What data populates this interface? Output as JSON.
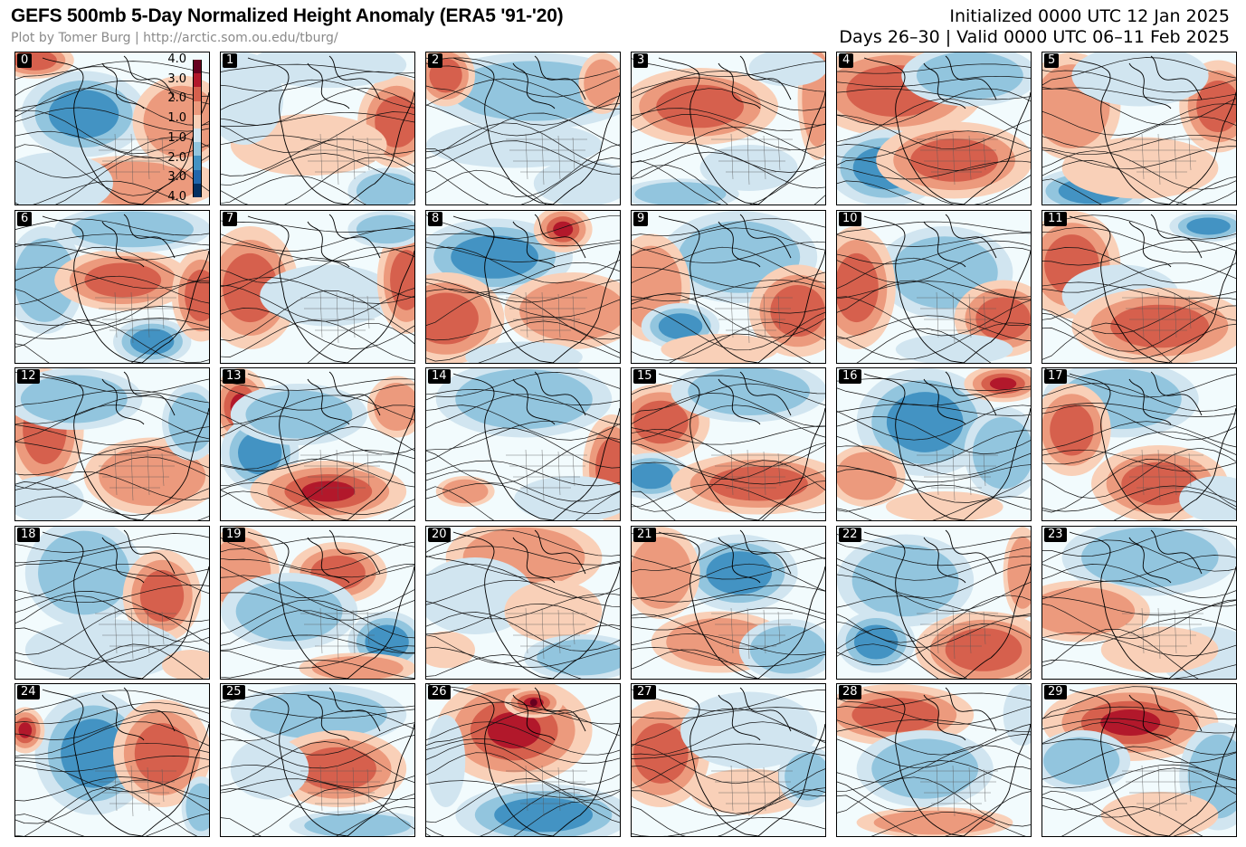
{
  "header": {
    "title": "GEFS 500mb 5-Day Normalized Height Anomaly (ERA5 '91-'20)",
    "credit": "Plot by Tomer Burg | http://arctic.som.ou.edu/tburg/",
    "initialized": "Initialized 0000 UTC 12 Jan 2025",
    "valid": "Days 26–30 | Valid 0000 UTC 06–11 Feb 2025"
  },
  "colors": {
    "pos": [
      "#f9d0b8",
      "#ec9a7d",
      "#d6604d",
      "#b2182b",
      "#67001f"
    ],
    "neg": [
      "#d1e5f0",
      "#92c5de",
      "#4393c3",
      "#2166ac",
      "#053061"
    ],
    "background": "#f2fbfd",
    "coast": "#000000"
  },
  "colorbar": {
    "ticks": [
      "4.0",
      "3.0",
      "2.0",
      "1.0",
      "1.0",
      "2.0",
      "3.0",
      "4.0"
    ]
  },
  "members": [
    {
      "label": "0",
      "blobs": [
        [
          "n",
          0.35,
          0.4,
          0.32,
          0.28,
          2
        ],
        [
          "p",
          0.1,
          0.05,
          0.2,
          0.12,
          2
        ],
        [
          "p",
          0.6,
          0.85,
          0.45,
          0.18,
          1
        ],
        [
          "p",
          0.85,
          0.45,
          0.25,
          0.3,
          1
        ],
        [
          "n",
          0.2,
          0.85,
          0.3,
          0.2,
          0
        ]
      ]
    },
    {
      "label": "1",
      "blobs": [
        [
          "p",
          0.9,
          0.45,
          0.2,
          0.3,
          2
        ],
        [
          "n",
          0.55,
          0.08,
          0.4,
          0.15,
          0
        ],
        [
          "p",
          0.45,
          0.6,
          0.4,
          0.2,
          0
        ],
        [
          "n",
          0.12,
          0.3,
          0.2,
          0.3,
          0
        ],
        [
          "n",
          0.85,
          0.9,
          0.2,
          0.15,
          1
        ]
      ]
    },
    {
      "label": "2",
      "blobs": [
        [
          "n",
          0.55,
          0.25,
          0.55,
          0.25,
          1
        ],
        [
          "p",
          0.1,
          0.15,
          0.15,
          0.2,
          2
        ],
        [
          "n",
          0.45,
          0.6,
          0.45,
          0.15,
          0
        ],
        [
          "p",
          0.9,
          0.2,
          0.12,
          0.2,
          1
        ],
        [
          "n",
          0.8,
          0.85,
          0.25,
          0.15,
          0
        ]
      ]
    },
    {
      "label": "3",
      "blobs": [
        [
          "p",
          0.35,
          0.35,
          0.4,
          0.25,
          2
        ],
        [
          "n",
          0.6,
          0.75,
          0.25,
          0.15,
          0
        ],
        [
          "n",
          0.25,
          0.92,
          0.3,
          0.1,
          1
        ],
        [
          "p",
          0.95,
          0.3,
          0.1,
          0.4,
          1
        ],
        [
          "n",
          0.8,
          0.1,
          0.2,
          0.12,
          0
        ]
      ]
    },
    {
      "label": "4",
      "blobs": [
        [
          "p",
          0.3,
          0.25,
          0.45,
          0.3,
          2
        ],
        [
          "n",
          0.25,
          0.75,
          0.3,
          0.25,
          2
        ],
        [
          "p",
          0.6,
          0.7,
          0.4,
          0.25,
          2
        ],
        [
          "n",
          0.68,
          0.15,
          0.35,
          0.2,
          1
        ]
      ]
    },
    {
      "label": "5",
      "blobs": [
        [
          "p",
          0.15,
          0.35,
          0.25,
          0.35,
          1
        ],
        [
          "n",
          0.25,
          0.9,
          0.3,
          0.15,
          2
        ],
        [
          "p",
          0.9,
          0.35,
          0.2,
          0.3,
          2
        ],
        [
          "n",
          0.5,
          0.15,
          0.35,
          0.2,
          0
        ],
        [
          "p",
          0.5,
          0.75,
          0.4,
          0.2,
          0
        ]
      ]
    },
    {
      "label": "6",
      "blobs": [
        [
          "n",
          0.15,
          0.45,
          0.2,
          0.35,
          1
        ],
        [
          "p",
          0.55,
          0.45,
          0.35,
          0.2,
          2
        ],
        [
          "n",
          0.7,
          0.85,
          0.2,
          0.15,
          2
        ],
        [
          "p",
          0.95,
          0.55,
          0.15,
          0.3,
          2
        ],
        [
          "n",
          0.6,
          0.12,
          0.4,
          0.15,
          1
        ]
      ]
    },
    {
      "label": "7",
      "blobs": [
        [
          "p",
          0.15,
          0.5,
          0.25,
          0.4,
          2
        ],
        [
          "n",
          0.55,
          0.55,
          0.35,
          0.2,
          0
        ],
        [
          "p",
          0.95,
          0.45,
          0.15,
          0.35,
          2
        ],
        [
          "n",
          0.85,
          0.12,
          0.2,
          0.12,
          1
        ]
      ]
    },
    {
      "label": "8",
      "blobs": [
        [
          "n",
          0.35,
          0.3,
          0.4,
          0.25,
          2
        ],
        [
          "p",
          0.1,
          0.7,
          0.3,
          0.3,
          2
        ],
        [
          "p",
          0.75,
          0.65,
          0.35,
          0.25,
          1
        ],
        [
          "p",
          0.7,
          0.12,
          0.15,
          0.15,
          3
        ],
        [
          "n",
          0.5,
          0.95,
          0.3,
          0.1,
          0
        ]
      ]
    },
    {
      "label": "9",
      "blobs": [
        [
          "n",
          0.55,
          0.3,
          0.4,
          0.3,
          1
        ],
        [
          "p",
          0.1,
          0.5,
          0.2,
          0.35,
          1
        ],
        [
          "n",
          0.25,
          0.75,
          0.2,
          0.15,
          2
        ],
        [
          "p",
          0.85,
          0.65,
          0.25,
          0.3,
          2
        ],
        [
          "p",
          0.45,
          0.9,
          0.3,
          0.1,
          0
        ]
      ]
    },
    {
      "label": "10",
      "blobs": [
        [
          "n",
          0.55,
          0.4,
          0.35,
          0.3,
          1
        ],
        [
          "p",
          0.1,
          0.5,
          0.2,
          0.4,
          2
        ],
        [
          "p",
          0.85,
          0.7,
          0.25,
          0.25,
          2
        ],
        [
          "n",
          0.6,
          0.9,
          0.3,
          0.1,
          0
        ]
      ]
    },
    {
      "label": "11",
      "blobs": [
        [
          "p",
          0.15,
          0.35,
          0.25,
          0.35,
          2
        ],
        [
          "n",
          0.4,
          0.55,
          0.3,
          0.2,
          0
        ],
        [
          "p",
          0.6,
          0.75,
          0.45,
          0.25,
          2
        ],
        [
          "n",
          0.85,
          0.1,
          0.2,
          0.1,
          2
        ]
      ]
    },
    {
      "label": "12",
      "blobs": [
        [
          "p",
          0.15,
          0.4,
          0.2,
          0.4,
          2
        ],
        [
          "n",
          0.3,
          0.2,
          0.35,
          0.2,
          1
        ],
        [
          "p",
          0.7,
          0.7,
          0.35,
          0.25,
          1
        ],
        [
          "n",
          0.9,
          0.35,
          0.15,
          0.25,
          1
        ],
        [
          "n",
          0.15,
          0.85,
          0.2,
          0.15,
          0
        ]
      ]
    },
    {
      "label": "13",
      "blobs": [
        [
          "p",
          0.1,
          0.25,
          0.15,
          0.25,
          3
        ],
        [
          "n",
          0.2,
          0.55,
          0.2,
          0.25,
          2
        ],
        [
          "p",
          0.55,
          0.8,
          0.4,
          0.2,
          3
        ],
        [
          "n",
          0.4,
          0.3,
          0.35,
          0.2,
          1
        ],
        [
          "p",
          0.9,
          0.25,
          0.15,
          0.2,
          1
        ]
      ]
    },
    {
      "label": "14",
      "blobs": [
        [
          "n",
          0.5,
          0.2,
          0.45,
          0.25,
          1
        ],
        [
          "p",
          0.95,
          0.65,
          0.15,
          0.35,
          2
        ],
        [
          "p",
          0.2,
          0.8,
          0.15,
          0.1,
          1
        ],
        [
          "n",
          0.75,
          0.85,
          0.3,
          0.15,
          0
        ]
      ]
    },
    {
      "label": "15",
      "blobs": [
        [
          "p",
          0.15,
          0.35,
          0.25,
          0.25,
          2
        ],
        [
          "n",
          0.1,
          0.7,
          0.2,
          0.15,
          2
        ],
        [
          "p",
          0.65,
          0.75,
          0.45,
          0.2,
          2
        ],
        [
          "n",
          0.6,
          0.15,
          0.4,
          0.2,
          1
        ]
      ]
    },
    {
      "label": "16",
      "blobs": [
        [
          "n",
          0.45,
          0.35,
          0.35,
          0.35,
          2
        ],
        [
          "p",
          0.85,
          0.1,
          0.2,
          0.12,
          3
        ],
        [
          "p",
          0.15,
          0.7,
          0.2,
          0.2,
          1
        ],
        [
          "n",
          0.85,
          0.55,
          0.2,
          0.3,
          1
        ],
        [
          "p",
          0.55,
          0.9,
          0.3,
          0.1,
          0
        ]
      ]
    },
    {
      "label": "17",
      "blobs": [
        [
          "n",
          0.4,
          0.2,
          0.4,
          0.25,
          1
        ],
        [
          "p",
          0.15,
          0.4,
          0.2,
          0.3,
          2
        ],
        [
          "p",
          0.6,
          0.75,
          0.35,
          0.25,
          2
        ],
        [
          "n",
          0.9,
          0.85,
          0.2,
          0.15,
          0
        ]
      ]
    },
    {
      "label": "18",
      "blobs": [
        [
          "n",
          0.35,
          0.3,
          0.3,
          0.35,
          1
        ],
        [
          "p",
          0.75,
          0.45,
          0.2,
          0.3,
          2
        ],
        [
          "n",
          0.45,
          0.8,
          0.4,
          0.2,
          0
        ],
        [
          "p",
          0.9,
          0.9,
          0.15,
          0.1,
          0
        ]
      ]
    },
    {
      "label": "19",
      "blobs": [
        [
          "p",
          0.1,
          0.3,
          0.2,
          0.3,
          1
        ],
        [
          "p",
          0.6,
          0.3,
          0.25,
          0.2,
          2
        ],
        [
          "n",
          0.35,
          0.55,
          0.35,
          0.25,
          1
        ],
        [
          "n",
          0.85,
          0.75,
          0.2,
          0.2,
          2
        ],
        [
          "p",
          0.7,
          0.92,
          0.3,
          0.1,
          1
        ]
      ]
    },
    {
      "label": "20",
      "blobs": [
        [
          "p",
          0.5,
          0.2,
          0.4,
          0.25,
          1
        ],
        [
          "n",
          0.25,
          0.45,
          0.3,
          0.25,
          0
        ],
        [
          "p",
          0.65,
          0.55,
          0.25,
          0.2,
          0
        ],
        [
          "n",
          0.8,
          0.85,
          0.3,
          0.15,
          1
        ],
        [
          "p",
          0.1,
          0.8,
          0.15,
          0.12,
          0
        ]
      ]
    },
    {
      "label": "21",
      "blobs": [
        [
          "n",
          0.55,
          0.3,
          0.3,
          0.25,
          2
        ],
        [
          "p",
          0.15,
          0.3,
          0.2,
          0.3,
          1
        ],
        [
          "p",
          0.45,
          0.75,
          0.35,
          0.2,
          1
        ],
        [
          "n",
          0.8,
          0.8,
          0.25,
          0.2,
          1
        ]
      ]
    },
    {
      "label": "22",
      "blobs": [
        [
          "n",
          0.35,
          0.35,
          0.35,
          0.3,
          1
        ],
        [
          "p",
          0.75,
          0.8,
          0.35,
          0.25,
          2
        ],
        [
          "n",
          0.2,
          0.75,
          0.2,
          0.2,
          2
        ],
        [
          "p",
          0.95,
          0.3,
          0.1,
          0.3,
          1
        ]
      ]
    },
    {
      "label": "23",
      "blobs": [
        [
          "n",
          0.55,
          0.2,
          0.45,
          0.25,
          1
        ],
        [
          "p",
          0.2,
          0.55,
          0.35,
          0.2,
          1
        ],
        [
          "n",
          0.85,
          0.85,
          0.25,
          0.2,
          0
        ],
        [
          "p",
          0.6,
          0.8,
          0.3,
          0.15,
          0
        ]
      ]
    },
    {
      "label": "24",
      "blobs": [
        [
          "n",
          0.4,
          0.45,
          0.3,
          0.4,
          2
        ],
        [
          "p",
          0.05,
          0.3,
          0.1,
          0.15,
          3
        ],
        [
          "p",
          0.75,
          0.45,
          0.25,
          0.35,
          2
        ],
        [
          "n",
          0.95,
          0.8,
          0.1,
          0.2,
          1
        ]
      ]
    },
    {
      "label": "25",
      "blobs": [
        [
          "n",
          0.5,
          0.2,
          0.45,
          0.2,
          1
        ],
        [
          "p",
          0.6,
          0.55,
          0.35,
          0.25,
          2
        ],
        [
          "n",
          0.25,
          0.55,
          0.2,
          0.2,
          0
        ],
        [
          "n",
          0.7,
          0.92,
          0.35,
          0.1,
          1
        ]
      ]
    },
    {
      "label": "26",
      "blobs": [
        [
          "p",
          0.45,
          0.3,
          0.4,
          0.35,
          3
        ],
        [
          "p",
          0.55,
          0.12,
          0.15,
          0.1,
          4
        ],
        [
          "n",
          0.6,
          0.85,
          0.45,
          0.2,
          2
        ],
        [
          "n",
          0.1,
          0.5,
          0.1,
          0.3,
          0
        ]
      ]
    },
    {
      "label": "27",
      "blobs": [
        [
          "p",
          0.15,
          0.45,
          0.25,
          0.35,
          2
        ],
        [
          "n",
          0.6,
          0.3,
          0.35,
          0.25,
          0
        ],
        [
          "p",
          0.6,
          0.7,
          0.3,
          0.15,
          0
        ],
        [
          "n",
          0.9,
          0.6,
          0.15,
          0.2,
          1
        ]
      ]
    },
    {
      "label": "28",
      "blobs": [
        [
          "p",
          0.3,
          0.2,
          0.4,
          0.2,
          2
        ],
        [
          "n",
          0.45,
          0.55,
          0.35,
          0.25,
          1
        ],
        [
          "p",
          0.5,
          0.9,
          0.4,
          0.1,
          1
        ],
        [
          "n",
          0.95,
          0.2,
          0.1,
          0.2,
          0
        ]
      ]
    },
    {
      "label": "29",
      "blobs": [
        [
          "p",
          0.45,
          0.25,
          0.45,
          0.25,
          3
        ],
        [
          "n",
          0.2,
          0.5,
          0.25,
          0.2,
          1
        ],
        [
          "n",
          0.9,
          0.6,
          0.2,
          0.35,
          1
        ],
        [
          "p",
          0.6,
          0.85,
          0.3,
          0.15,
          0
        ]
      ]
    }
  ]
}
